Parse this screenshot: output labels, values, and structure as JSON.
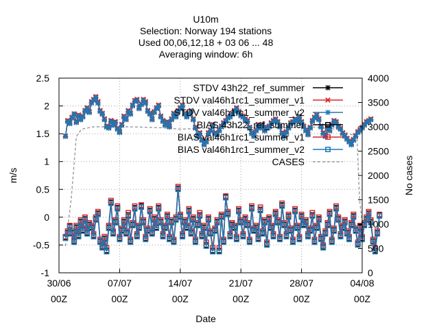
{
  "chart_data": {
    "type": "line",
    "title_lines": [
      "U10m",
      "Selection: Norway    194 stations",
      "Used  00,06,12,18  + 03 06 ... 48",
      "Averaging window:  6h"
    ],
    "xlabel": "Date",
    "ylabel": "m/s",
    "y2label": "No cases",
    "x_ticks": [
      {
        "t": 0,
        "l1": "30/06",
        "l2": "00Z"
      },
      {
        "t": 7,
        "l1": "07/07",
        "l2": "00Z"
      },
      {
        "t": 14,
        "l1": "14/07",
        "l2": "00Z"
      },
      {
        "t": 21,
        "l1": "21/07",
        "l2": "00Z"
      },
      {
        "t": 28,
        "l1": "28/07",
        "l2": "00Z"
      },
      {
        "t": 35,
        "l1": "04/08",
        "l2": "00Z"
      }
    ],
    "x_range_days": [
      0,
      35
    ],
    "ylim": [
      -1,
      2.5
    ],
    "y_ticks": [
      "2.5",
      "2",
      "1.5",
      "1",
      "0.5",
      "0",
      "-0.5",
      "-1"
    ],
    "y_tick_values": [
      2.5,
      2,
      1.5,
      1,
      0.5,
      0,
      -0.5,
      -1
    ],
    "y2lim": [
      0,
      4000
    ],
    "y2_ticks": [
      "4000",
      "3500",
      "3000",
      "2500",
      "2000",
      "1500",
      "1000",
      "500",
      "0"
    ],
    "y2_tick_values": [
      4000,
      3500,
      3000,
      2500,
      2000,
      1500,
      1000,
      500,
      0
    ],
    "grid": true,
    "legend_position": "top-right",
    "legend": [
      {
        "label": "STDV 43h22_ref_summer",
        "color": "#000000",
        "marker": "star",
        "axis": "y"
      },
      {
        "label": "STDV val46h1rc1_summer_v1",
        "color": "#d62728",
        "marker": "x",
        "axis": "y"
      },
      {
        "label": "STDV val46h1rc1_summer_v2",
        "color": "#1f77b4",
        "marker": "star",
        "axis": "y"
      },
      {
        "label": "BIAS 43h22_ref_summer",
        "color": "#000000",
        "marker": "square",
        "axis": "y"
      },
      {
        "label": "BIAS val46h1rc1_summer_v1",
        "color": "#d62728",
        "marker": "square",
        "axis": "y"
      },
      {
        "label": "BIAS val46h1rc1_summer_v2",
        "color": "#1f77b4",
        "marker": "square",
        "axis": "y"
      },
      {
        "label": "CASES",
        "color": "#999999",
        "marker": "dash",
        "axis": "y2"
      }
    ],
    "series_x_start_day": 0.75,
    "series_x_step_days": 0.25,
    "stdv_v2": [
      1.45,
      1.72,
      1.68,
      1.78,
      1.85,
      1.7,
      1.82,
      1.75,
      1.8,
      1.9,
      1.95,
      1.88,
      2.05,
      2.1,
      2.15,
      2.05,
      1.9,
      1.85,
      1.75,
      1.62,
      1.6,
      1.72,
      1.65,
      1.7,
      1.58,
      1.52,
      1.65,
      1.8,
      1.75,
      1.9,
      1.85,
      2.0,
      2.08,
      2.1,
      1.95,
      2.02,
      2.1,
      2.05,
      1.9,
      1.85,
      1.75,
      1.88,
      1.95,
      2.0,
      1.8,
      1.72,
      1.65,
      1.7,
      1.62,
      1.75,
      1.85,
      1.8,
      1.9,
      1.95,
      2.0,
      1.85,
      1.8,
      1.85,
      1.9,
      1.75,
      1.6,
      1.45,
      1.5,
      1.38,
      1.3,
      1.35,
      1.5,
      1.55,
      1.65,
      1.5,
      1.48,
      1.55,
      1.62,
      1.68,
      1.72,
      1.78,
      1.8,
      1.85,
      1.9,
      1.95,
      1.88,
      1.82,
      1.8,
      1.75,
      1.72,
      1.6,
      1.5,
      1.45,
      1.55,
      1.65,
      1.6,
      1.65,
      1.55,
      1.6,
      1.62,
      1.68,
      1.72,
      1.75,
      1.7,
      1.62,
      1.5,
      1.45,
      1.52,
      1.6,
      1.68,
      1.7,
      1.75,
      1.72,
      1.8,
      1.7,
      1.62,
      1.55,
      1.48,
      1.6,
      1.72,
      1.78,
      1.82,
      1.75,
      1.62,
      1.5,
      1.45,
      1.6,
      1.55,
      1.65,
      1.72,
      1.7,
      1.62,
      1.58,
      1.5,
      1.45,
      1.4,
      1.35,
      1.3,
      1.38,
      1.45,
      1.52,
      1.55,
      1.6,
      1.65,
      1.7,
      1.72,
      1.75
    ],
    "stdv_v1": [
      1.46,
      1.74,
      1.7,
      1.8,
      1.86,
      1.72,
      1.84,
      1.77,
      1.82,
      1.92,
      1.97,
      1.9,
      2.08,
      2.12,
      2.17,
      2.08,
      1.92,
      1.87,
      1.77,
      1.64,
      1.62,
      1.74,
      1.67,
      1.72,
      1.6,
      1.54,
      1.67,
      1.82,
      1.77,
      1.92,
      1.87,
      2.02,
      2.1,
      2.12,
      1.97,
      2.04,
      2.12,
      2.08,
      1.92,
      1.87,
      1.77,
      1.9,
      1.97,
      2.02,
      1.82,
      1.74,
      1.67,
      1.72,
      1.64,
      1.77,
      1.87,
      1.82,
      1.92,
      1.97,
      2.02,
      1.87,
      1.82,
      1.87,
      1.92,
      1.77,
      1.62,
      1.47,
      1.52,
      1.4,
      1.32,
      1.37,
      1.52,
      1.57,
      1.67,
      1.52,
      1.5,
      1.57,
      1.64,
      1.7,
      1.74,
      1.8,
      1.82,
      1.87,
      1.92,
      1.97,
      1.9,
      1.84,
      1.82,
      1.77,
      1.74,
      1.62,
      1.52,
      1.47,
      1.57,
      1.67,
      1.62,
      1.67,
      1.57,
      1.62,
      1.64,
      1.7,
      1.74,
      1.77,
      1.72,
      1.64,
      1.52,
      1.47,
      1.54,
      1.62,
      1.7,
      1.72,
      1.77,
      1.74,
      1.82,
      1.72,
      1.64,
      1.57,
      1.5,
      1.62,
      1.74,
      1.8,
      1.84,
      1.77,
      1.64,
      1.52,
      1.47,
      1.62,
      1.57,
      1.67,
      1.74,
      1.72,
      1.64,
      1.6,
      1.52,
      1.47,
      1.42,
      1.37,
      1.32,
      1.4,
      1.47,
      1.54,
      1.57,
      1.62,
      1.67,
      1.72,
      1.74,
      1.77
    ],
    "bias_v2": [
      -0.38,
      -0.3,
      -0.18,
      -0.3,
      -0.45,
      -0.2,
      -0.35,
      -0.1,
      -0.25,
      -0.05,
      -0.3,
      -0.15,
      -0.2,
      -0.35,
      -0.05,
      0.05,
      -0.45,
      -0.55,
      -0.4,
      -0.62,
      -0.2,
      0.25,
      -0.3,
      -0.1,
      0.15,
      -0.4,
      -0.25,
      -0.1,
      -0.3,
      0.02,
      -0.45,
      -0.15,
      0.15,
      -0.35,
      -0.2,
      0.18,
      -0.1,
      -0.4,
      -0.25,
      0.1,
      -0.3,
      -0.05,
      -0.2,
      0.15,
      -0.1,
      -0.35,
      -0.2,
      0.0,
      -0.4,
      -0.1,
      -0.45,
      -0.05,
      0.5,
      0.0,
      -0.35,
      -0.1,
      -0.2,
      0.1,
      -0.3,
      -0.05,
      -0.45,
      -0.15,
      0.02,
      -0.35,
      -0.2,
      -0.52,
      -0.05,
      -0.3,
      -0.62,
      -0.25,
      -0.1,
      -0.62,
      0.0,
      -0.45,
      0.35,
      0.05,
      -0.35,
      -0.15,
      -0.2,
      -0.4,
      0.1,
      -0.1,
      -0.35,
      -0.05,
      -0.15,
      -0.45,
      0.15,
      -0.25,
      -0.2,
      -0.4,
      0.12,
      -0.3,
      -0.1,
      -0.5,
      -0.05,
      -0.2,
      -0.35,
      0.05,
      -0.1,
      -0.4,
      0.2,
      -0.15,
      -0.35,
      0.0,
      -0.25,
      -0.45,
      0.1,
      -0.2,
      -0.4,
      0.0,
      -0.15,
      -0.1,
      -0.35,
      -0.25,
      0.02,
      -0.45,
      -0.2,
      -0.05,
      -0.4,
      -0.55,
      -0.3,
      -0.15,
      0.05,
      -0.45,
      -0.25,
      0.15,
      -0.05,
      -0.35,
      -0.2,
      -0.1,
      -0.3,
      -0.4,
      -0.15,
      0.0,
      -0.25,
      -0.5,
      -0.2,
      -0.4,
      -0.15,
      -0.05,
      0.05,
      -0.1,
      -0.45,
      -0.62,
      -0.3,
      0.02
    ],
    "bias_v1": [
      -0.35,
      -0.25,
      -0.15,
      -0.25,
      -0.4,
      -0.15,
      -0.3,
      -0.05,
      -0.2,
      0.0,
      -0.25,
      -0.1,
      -0.15,
      -0.3,
      0.0,
      0.1,
      -0.4,
      -0.5,
      -0.35,
      -0.55,
      -0.15,
      0.3,
      -0.25,
      -0.05,
      0.2,
      -0.35,
      -0.2,
      -0.05,
      -0.25,
      0.08,
      -0.4,
      -0.1,
      0.2,
      -0.3,
      -0.15,
      0.22,
      -0.05,
      -0.35,
      -0.2,
      0.15,
      -0.25,
      0.0,
      -0.15,
      0.2,
      -0.05,
      -0.3,
      -0.15,
      0.05,
      -0.35,
      -0.05,
      -0.4,
      0.0,
      0.55,
      0.05,
      -0.3,
      -0.05,
      -0.15,
      0.15,
      -0.25,
      0.0,
      -0.4,
      -0.1,
      0.08,
      -0.3,
      -0.15,
      -0.45,
      0.0,
      -0.25,
      -0.55,
      -0.2,
      -0.05,
      -0.55,
      0.05,
      -0.4,
      0.38,
      0.1,
      -0.3,
      -0.1,
      -0.15,
      -0.35,
      0.15,
      -0.05,
      -0.3,
      0.0,
      -0.1,
      -0.4,
      0.2,
      -0.2,
      -0.15,
      -0.35,
      0.18,
      -0.25,
      -0.05,
      -0.45,
      0.0,
      -0.15,
      -0.3,
      0.1,
      -0.05,
      -0.35,
      0.25,
      -0.1,
      -0.3,
      0.05,
      -0.2,
      -0.4,
      0.15,
      -0.15,
      -0.35,
      0.05,
      -0.1,
      -0.05,
      -0.3,
      -0.2,
      0.08,
      -0.4,
      -0.15,
      0.0,
      -0.35,
      -0.5,
      -0.25,
      -0.1,
      0.1,
      -0.4,
      -0.2,
      0.2,
      0.0,
      -0.3,
      -0.15,
      -0.05,
      -0.25,
      -0.35,
      -0.1,
      0.05,
      -0.2,
      -0.45,
      -0.15,
      -0.35,
      -0.1,
      0.0,
      0.1,
      -0.05,
      -0.4,
      -0.55,
      -0.25,
      0.05
    ],
    "cases_points": [
      [
        0.75,
        550
      ],
      [
        1.4,
        1500
      ],
      [
        2.0,
        2800
      ],
      [
        2.6,
        2950
      ],
      [
        4.0,
        3000
      ],
      [
        8.0,
        3000
      ],
      [
        12.0,
        2980
      ],
      [
        14.0,
        2950
      ],
      [
        20.0,
        3000
      ],
      [
        26.0,
        2980
      ],
      [
        29.0,
        3000
      ],
      [
        32.0,
        2950
      ],
      [
        34.4,
        2800
      ],
      [
        34.7,
        1500
      ],
      [
        35.0,
        1050
      ]
    ]
  }
}
